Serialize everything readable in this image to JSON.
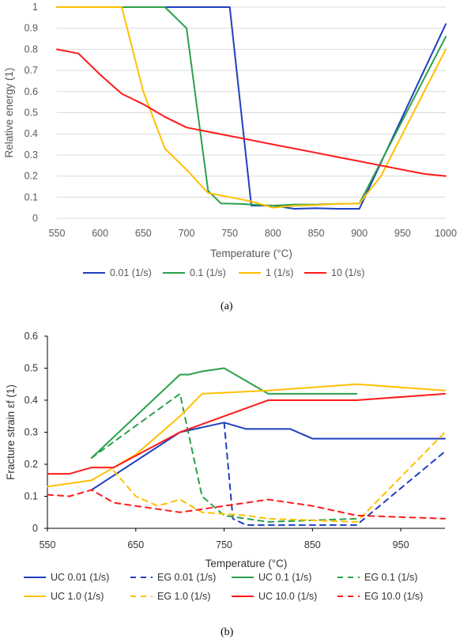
{
  "chart_data": [
    {
      "type": "line",
      "panel_label": "(a)",
      "xlabel": "Temperature (°C)",
      "ylabel": "Relative energy (1)",
      "xlim": [
        550,
        1000
      ],
      "ylim": [
        0,
        1
      ],
      "x_ticks": [
        550,
        600,
        650,
        700,
        750,
        800,
        850,
        900,
        950,
        1000
      ],
      "y_ticks": [
        0,
        0.1,
        0.2,
        0.3,
        0.4,
        0.5,
        0.6,
        0.7,
        0.8,
        0.9,
        1
      ],
      "y_tick_labels": [
        "0",
        "0.1",
        "0.2",
        "0.3",
        "0.4",
        "0.5",
        "0.6",
        "0.7",
        "0.8",
        "0.9",
        "1"
      ],
      "grid": "horizontal",
      "legend_position": "bottom",
      "series": [
        {
          "name": "0.01 (1/s)",
          "color": "#1f3fbf",
          "dash": false,
          "x": [
            550,
            625,
            675,
            700,
            725,
            750,
            775,
            800,
            825,
            850,
            875,
            900,
            1000
          ],
          "y": [
            1,
            1,
            1,
            1,
            1,
            1,
            0.06,
            0.06,
            0.045,
            0.048,
            0.045,
            0.045,
            0.92
          ]
        },
        {
          "name": "0.1 (1/s)",
          "color": "#2ca04a",
          "dash": false,
          "x": [
            550,
            625,
            675,
            700,
            725,
            740,
            760,
            800,
            825,
            850,
            875,
            900,
            1000
          ],
          "y": [
            1,
            1,
            1,
            0.9,
            0.13,
            0.07,
            0.068,
            0.06,
            0.065,
            0.065,
            0.068,
            0.07,
            0.86
          ]
        },
        {
          "name": "1 (1/s)",
          "color": "#ffc000",
          "dash": false,
          "x": [
            550,
            625,
            650,
            675,
            700,
            725,
            750,
            775,
            800,
            825,
            850,
            875,
            900,
            925,
            1000
          ],
          "y": [
            1,
            1,
            0.6,
            0.33,
            0.23,
            0.12,
            0.1,
            0.08,
            0.05,
            0.06,
            0.063,
            0.068,
            0.07,
            0.2,
            0.8
          ]
        },
        {
          "name": "10 (1/s)",
          "color": "#ff1a1a",
          "dash": false,
          "x": [
            550,
            575,
            600,
            625,
            650,
            675,
            700,
            725,
            750,
            775,
            800,
            825,
            850,
            875,
            900,
            925,
            950,
            975,
            1000
          ],
          "y": [
            0.8,
            0.78,
            0.68,
            0.59,
            0.54,
            0.48,
            0.43,
            0.41,
            0.39,
            0.37,
            0.35,
            0.33,
            0.31,
            0.29,
            0.27,
            0.25,
            0.23,
            0.21,
            0.2
          ]
        }
      ]
    },
    {
      "type": "line",
      "panel_label": "(b)",
      "xlabel": "Temperature (°C)",
      "ylabel": "Fracture strain εf (1)",
      "xlim": [
        550,
        1000
      ],
      "ylim": [
        0,
        0.6
      ],
      "x_ticks": [
        550,
        650,
        750,
        850,
        950
      ],
      "y_ticks": [
        0,
        0.1,
        0.2,
        0.3,
        0.4,
        0.5,
        0.6
      ],
      "y_tick_labels": [
        "0",
        "0.1",
        "0.2",
        "0.3",
        "0.4",
        "0.5",
        "0.6"
      ],
      "grid": "none",
      "legend_position": "bottom",
      "series": [
        {
          "name": "UC 0.01 (1/s)",
          "color": "#1f3fbf",
          "dash": false,
          "x": [
            600,
            700,
            750,
            775,
            825,
            850,
            900,
            1000
          ],
          "y": [
            0.12,
            0.3,
            0.33,
            0.31,
            0.31,
            0.28,
            0.28,
            0.28
          ]
        },
        {
          "name": "EG 0.01 (1/s)",
          "color": "#1f3fbf",
          "dash": true,
          "x": [
            750,
            760,
            775,
            825,
            900,
            1000
          ],
          "y": [
            0.33,
            0.03,
            0.01,
            0.01,
            0.01,
            0.24
          ]
        },
        {
          "name": "UC 0.1 (1/s)",
          "color": "#2ca04a",
          "dash": false,
          "x": [
            600,
            700,
            710,
            725,
            750,
            800,
            900
          ],
          "y": [
            0.22,
            0.48,
            0.48,
            0.49,
            0.5,
            0.42,
            0.42
          ]
        },
        {
          "name": "EG 0.1 (1/s)",
          "color": "#2ca04a",
          "dash": true,
          "x": [
            600,
            700,
            725,
            750,
            800,
            900
          ],
          "y": [
            0.22,
            0.42,
            0.1,
            0.04,
            0.02,
            0.03
          ]
        },
        {
          "name": "UC 1.0 (1/s)",
          "color": "#ffc000",
          "dash": false,
          "x": [
            550,
            600,
            650,
            700,
            725,
            800,
            900,
            1000
          ],
          "y": [
            0.13,
            0.15,
            0.23,
            0.35,
            0.42,
            0.43,
            0.45,
            0.43
          ]
        },
        {
          "name": "EG 1.0 (1/s)",
          "color": "#ffc000",
          "dash": true,
          "x": [
            625,
            650,
            675,
            700,
            725,
            775,
            800,
            850,
            900,
            1000
          ],
          "y": [
            0.18,
            0.1,
            0.07,
            0.09,
            0.05,
            0.04,
            0.03,
            0.025,
            0.02,
            0.3
          ]
        },
        {
          "name": "UC 10.0 (1/s)",
          "color": "#ff1a1a",
          "dash": false,
          "x": [
            550,
            575,
            600,
            625,
            700,
            800,
            850,
            900,
            1000
          ],
          "y": [
            0.17,
            0.17,
            0.19,
            0.19,
            0.3,
            0.4,
            0.4,
            0.4,
            0.42
          ]
        },
        {
          "name": "EG 10.0 (1/s)",
          "color": "#ff1a1a",
          "dash": true,
          "x": [
            550,
            575,
            600,
            625,
            700,
            750,
            800,
            850,
            900,
            950,
            1000
          ],
          "y": [
            0.105,
            0.1,
            0.12,
            0.08,
            0.05,
            0.07,
            0.09,
            0.07,
            0.04,
            0.035,
            0.03
          ]
        }
      ]
    }
  ]
}
